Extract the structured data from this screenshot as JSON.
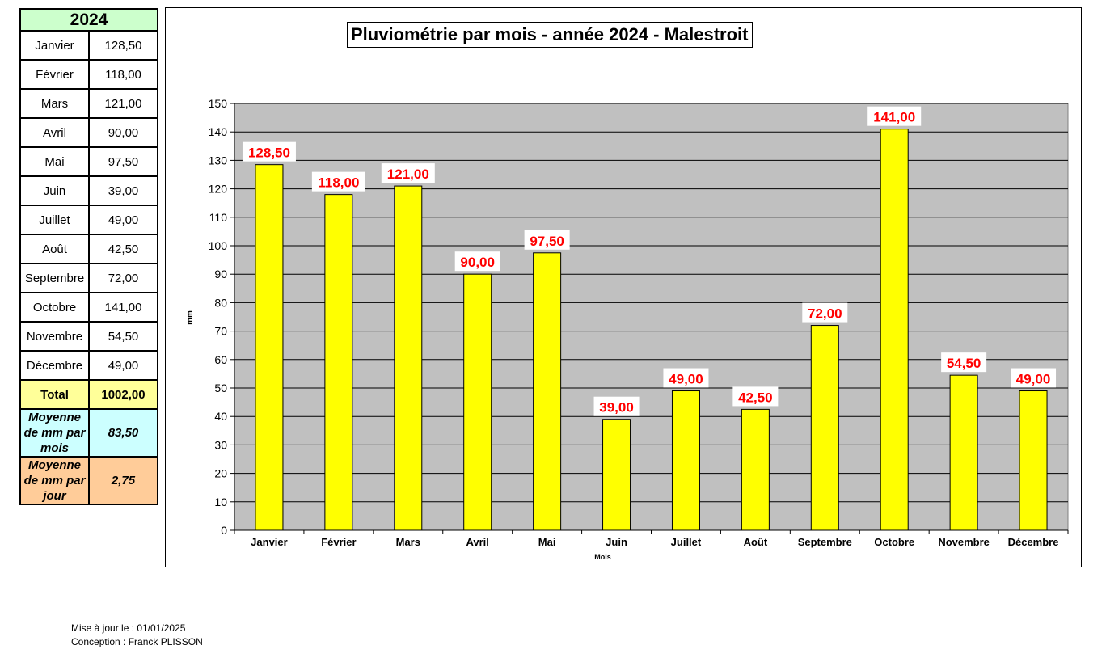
{
  "table": {
    "year": "2024",
    "rows": [
      {
        "month": "Janvier",
        "value": "128,50"
      },
      {
        "month": "Février",
        "value": "118,00"
      },
      {
        "month": "Mars",
        "value": "121,00"
      },
      {
        "month": "Avril",
        "value": "90,00"
      },
      {
        "month": "Mai",
        "value": "97,50"
      },
      {
        "month": "Juin",
        "value": "39,00"
      },
      {
        "month": "Juillet",
        "value": "49,00"
      },
      {
        "month": "Août",
        "value": "42,50"
      },
      {
        "month": "Septembre",
        "value": "72,00"
      },
      {
        "month": "Octobre",
        "value": "141,00"
      },
      {
        "month": "Novembre",
        "value": "54,50"
      },
      {
        "month": "Décembre",
        "value": "49,00"
      }
    ],
    "total_label": "Total",
    "total_value": "1002,00",
    "avg_month_label": "Moyenne de mm par mois",
    "avg_month_value": "83,50",
    "avg_day_label": "Moyenne de mm par jour",
    "avg_day_value": "2,75",
    "colors": {
      "header": "#ccffcc",
      "total": "#ffff99",
      "avg_month": "#ccffff",
      "avg_day": "#ffcc99"
    }
  },
  "chart_data": {
    "type": "bar",
    "title": "Pluviométrie par mois - année 2024 - Malestroit",
    "xlabel": "Mois",
    "ylabel": "mm",
    "categories": [
      "Janvier",
      "Février",
      "Mars",
      "Avril",
      "Mai",
      "Juin",
      "Juillet",
      "Août",
      "Septembre",
      "Octobre",
      "Novembre",
      "Décembre"
    ],
    "values": [
      128.5,
      118,
      121,
      90,
      97.5,
      39,
      49,
      42.5,
      72,
      141,
      54.5,
      49
    ],
    "value_labels": [
      "128,50",
      "118,00",
      "121,00",
      "90,00",
      "97,50",
      "39,00",
      "49,00",
      "42,50",
      "72,00",
      "141,00",
      "54,50",
      "49,00"
    ],
    "ylim": [
      0,
      150
    ],
    "yticks": [
      0,
      10,
      20,
      30,
      40,
      50,
      60,
      70,
      80,
      90,
      100,
      110,
      120,
      130,
      140,
      150
    ],
    "grid": true,
    "legend": "none",
    "colors": {
      "bar": "#ffff00",
      "plot_bg": "#c0c0c0",
      "label": "#ff0000"
    }
  },
  "footer": {
    "updated": "Mise à jour le : 01/01/2025",
    "author": "Conception : Franck PLISSON"
  }
}
